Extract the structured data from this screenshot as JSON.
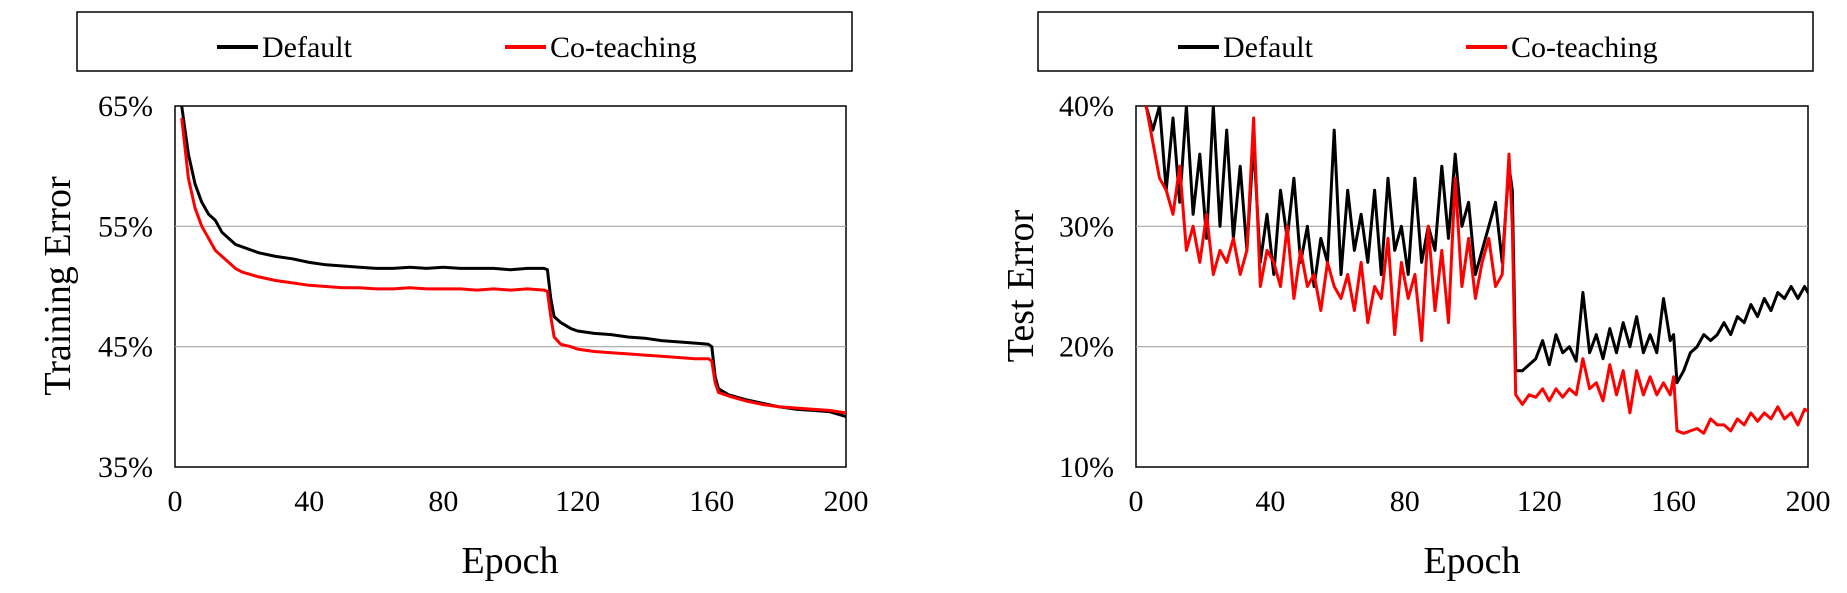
{
  "chart_data": [
    {
      "type": "line",
      "xlabel": "Epoch",
      "ylabel": "Training Error",
      "xlim": [
        0,
        200
      ],
      "ylim": [
        35,
        65
      ],
      "xticks": [
        0,
        40,
        80,
        120,
        160,
        200
      ],
      "yticks": [
        35,
        45,
        55,
        65
      ],
      "xtick_labels": [
        "0",
        "40",
        "80",
        "120",
        "160",
        "200"
      ],
      "ytick_labels": [
        "35%",
        "45%",
        "55%",
        "65%"
      ],
      "grid": "horizontal",
      "legend": {
        "placement": "top",
        "entries": [
          "Default",
          "Co-teaching"
        ]
      },
      "series": [
        {
          "name": "Default",
          "color": "#000000",
          "x": [
            2,
            4,
            6,
            8,
            10,
            12,
            14,
            16,
            18,
            20,
            25,
            30,
            35,
            40,
            45,
            50,
            55,
            60,
            65,
            70,
            75,
            80,
            85,
            90,
            95,
            100,
            105,
            110,
            111,
            112,
            113,
            115,
            118,
            120,
            125,
            130,
            135,
            140,
            145,
            150,
            155,
            159,
            160,
            161,
            162,
            165,
            170,
            175,
            180,
            185,
            190,
            195,
            200
          ],
          "values": [
            65,
            61,
            58.5,
            57,
            56,
            55.5,
            54.5,
            54,
            53.5,
            53.3,
            52.8,
            52.5,
            52.3,
            52,
            51.8,
            51.7,
            51.6,
            51.5,
            51.5,
            51.6,
            51.5,
            51.6,
            51.5,
            51.5,
            51.5,
            51.4,
            51.5,
            51.5,
            51.4,
            49,
            47.5,
            47,
            46.5,
            46.3,
            46.1,
            46,
            45.8,
            45.7,
            45.5,
            45.4,
            45.3,
            45.2,
            45,
            42.5,
            41.5,
            41,
            40.6,
            40.3,
            40,
            39.8,
            39.7,
            39.6,
            39.2
          ]
        },
        {
          "name": "Co-teaching",
          "color": "#ff0000",
          "x": [
            2,
            4,
            6,
            8,
            10,
            12,
            14,
            16,
            18,
            20,
            25,
            30,
            35,
            40,
            45,
            50,
            55,
            60,
            65,
            70,
            75,
            80,
            85,
            90,
            95,
            100,
            105,
            110,
            111,
            112,
            113,
            115,
            118,
            120,
            125,
            130,
            135,
            140,
            145,
            150,
            155,
            159,
            160,
            161,
            162,
            165,
            170,
            175,
            180,
            185,
            190,
            195,
            200
          ],
          "values": [
            64,
            59,
            56.5,
            55,
            54,
            53,
            52.5,
            52,
            51.5,
            51.2,
            50.8,
            50.5,
            50.3,
            50.1,
            50,
            49.9,
            49.9,
            49.8,
            49.8,
            49.9,
            49.8,
            49.8,
            49.8,
            49.7,
            49.8,
            49.7,
            49.8,
            49.7,
            49.6,
            47.5,
            45.8,
            45.2,
            45,
            44.8,
            44.6,
            44.5,
            44.4,
            44.3,
            44.2,
            44.1,
            44,
            44,
            43.8,
            42,
            41.2,
            40.9,
            40.5,
            40.2,
            40,
            39.9,
            39.8,
            39.7,
            39.5
          ]
        }
      ]
    },
    {
      "type": "line",
      "xlabel": "Epoch",
      "ylabel": "Test Error",
      "xlim": [
        0,
        200
      ],
      "ylim": [
        10,
        40
      ],
      "xticks": [
        0,
        40,
        80,
        120,
        160,
        200
      ],
      "yticks": [
        10,
        20,
        30,
        40
      ],
      "xtick_labels": [
        "0",
        "40",
        "80",
        "120",
        "160",
        "200"
      ],
      "ytick_labels": [
        "10%",
        "20%",
        "30%",
        "40%"
      ],
      "grid": "horizontal",
      "legend": {
        "placement": "top",
        "entries": [
          "Default",
          "Co-teaching"
        ]
      },
      "series": [
        {
          "name": "Default",
          "color": "#000000",
          "x": [
            3,
            5,
            7,
            9,
            11,
            13,
            15,
            17,
            19,
            21,
            23,
            25,
            27,
            29,
            31,
            33,
            35,
            37,
            39,
            41,
            43,
            45,
            47,
            49,
            51,
            53,
            55,
            57,
            59,
            61,
            63,
            65,
            67,
            69,
            71,
            73,
            75,
            77,
            79,
            81,
            83,
            85,
            87,
            89,
            91,
            93,
            95,
            97,
            99,
            101,
            103,
            105,
            107,
            109,
            111,
            112,
            113,
            115,
            117,
            119,
            121,
            123,
            125,
            127,
            129,
            131,
            133,
            135,
            137,
            139,
            141,
            143,
            145,
            147,
            149,
            151,
            153,
            155,
            157,
            159,
            160,
            161,
            163,
            165,
            167,
            169,
            171,
            173,
            175,
            177,
            179,
            181,
            183,
            185,
            187,
            189,
            191,
            193,
            195,
            197,
            199,
            201
          ],
          "values": [
            40,
            38,
            40,
            33,
            39,
            32,
            40,
            31,
            36,
            29,
            40,
            30,
            38,
            29,
            35,
            28,
            37,
            27,
            31,
            26,
            33,
            29,
            34,
            27,
            30,
            25,
            29,
            27,
            38,
            26,
            33,
            28,
            31,
            27,
            33,
            26,
            34,
            28,
            30,
            26,
            34,
            27,
            30,
            28,
            35,
            29,
            36,
            30,
            32,
            26,
            28,
            30,
            32,
            27,
            35,
            33,
            18,
            18,
            18.5,
            19,
            20.5,
            18.5,
            21,
            19.5,
            20,
            18.8,
            24.5,
            19.5,
            21,
            19,
            21.5,
            19.5,
            22,
            20,
            22.5,
            19.5,
            21,
            19.5,
            24,
            20.5,
            21,
            17,
            18,
            19.5,
            20,
            21,
            20.5,
            21,
            22,
            21,
            22.5,
            22,
            23.5,
            22.5,
            24,
            23,
            24.5,
            24,
            25,
            24,
            25,
            24
          ]
        },
        {
          "name": "Co-teaching",
          "color": "#ff0000",
          "x": [
            3,
            5,
            7,
            9,
            11,
            13,
            15,
            17,
            19,
            21,
            23,
            25,
            27,
            29,
            31,
            33,
            35,
            37,
            39,
            41,
            43,
            45,
            47,
            49,
            51,
            53,
            55,
            57,
            59,
            61,
            63,
            65,
            67,
            69,
            71,
            73,
            75,
            77,
            79,
            81,
            83,
            85,
            87,
            89,
            91,
            93,
            95,
            97,
            99,
            101,
            103,
            105,
            107,
            109,
            111,
            112,
            113,
            115,
            117,
            119,
            121,
            123,
            125,
            127,
            129,
            131,
            133,
            135,
            137,
            139,
            141,
            143,
            145,
            147,
            149,
            151,
            153,
            155,
            157,
            159,
            160,
            161,
            163,
            165,
            167,
            169,
            171,
            173,
            175,
            177,
            179,
            181,
            183,
            185,
            187,
            189,
            191,
            193,
            195,
            197,
            199,
            201
          ],
          "values": [
            40,
            37,
            34,
            33,
            31,
            35,
            28,
            30,
            27,
            31,
            26,
            28,
            27,
            29,
            26,
            28,
            39,
            25,
            28,
            27,
            25,
            30,
            24,
            28,
            25,
            26,
            23,
            27,
            25,
            24,
            26,
            23,
            27,
            22,
            25,
            24,
            29,
            21,
            27,
            24,
            26,
            20.5,
            30,
            23,
            28,
            22,
            34,
            25,
            29,
            24,
            27,
            29,
            25,
            26,
            36,
            30,
            16,
            15.2,
            16,
            15.8,
            16.5,
            15.5,
            16.5,
            15.8,
            16.5,
            16,
            19,
            16.5,
            17,
            15.5,
            18.5,
            16,
            18,
            14.5,
            18,
            16,
            17.5,
            16,
            17,
            16,
            17.5,
            13,
            12.8,
            13,
            13.2,
            12.8,
            14,
            13.5,
            13.5,
            13,
            14,
            13.5,
            14.5,
            13.8,
            14.5,
            14,
            15,
            14,
            14.5,
            13.5,
            14.8,
            14.5
          ]
        }
      ]
    }
  ]
}
